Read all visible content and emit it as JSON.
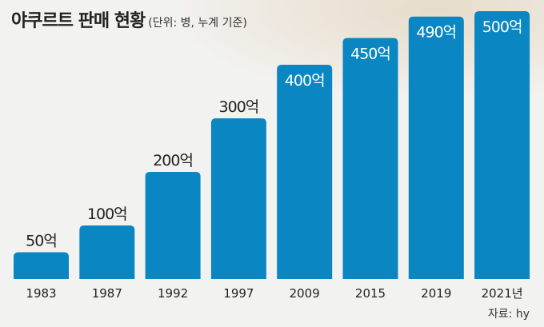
{
  "header": {
    "title": "야쿠르트 판매 현황",
    "subtitle": "(단위: 병, 누계 기준)"
  },
  "footer": {
    "source": "자료: hy"
  },
  "colors": {
    "bar": "#0a86c2",
    "background": "#f2f2f0",
    "text": "#222222"
  },
  "chart_data": {
    "type": "bar",
    "title": "야쿠르트 판매 현황",
    "subtitle": "(단위: 병, 누계 기준)",
    "categories": [
      "1983",
      "1987",
      "1992",
      "1997",
      "2009",
      "2015",
      "2019",
      "2021년"
    ],
    "values": [
      50,
      100,
      200,
      300,
      400,
      450,
      490,
      500
    ],
    "value_labels": [
      "50억",
      "100억",
      "200억",
      "300억",
      "400억",
      "450억",
      "490억",
      "500억"
    ],
    "unit": "억",
    "ylim": [
      0,
      500
    ],
    "grid": false,
    "legend": "none"
  }
}
